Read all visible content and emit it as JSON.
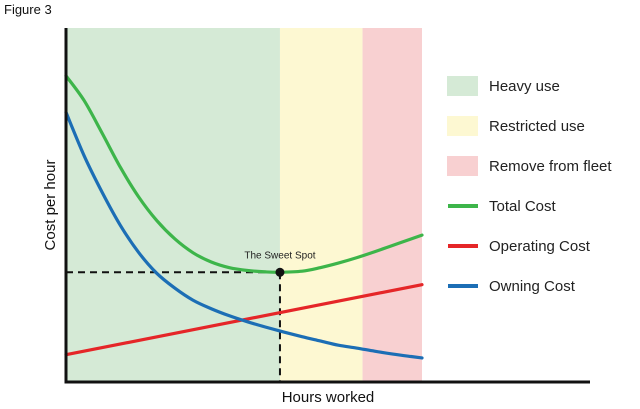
{
  "figure_label": "Figure 3",
  "chart_data": {
    "type": "line",
    "title": "",
    "xlabel": "Hours worked",
    "ylabel": "Cost per hour",
    "axis_ticks": false,
    "grid": false,
    "legend_position": "right",
    "x_range": [
      0,
      100
    ],
    "y_range": [
      0,
      100
    ],
    "zones": [
      {
        "name": "Heavy use",
        "color": "#d5ead6",
        "from": 0,
        "to": 60.1
      },
      {
        "name": "Restricted use",
        "color": "#fdf8d2",
        "from": 60.1,
        "to": 83.3
      },
      {
        "name": "Remove from fleet",
        "color": "#f8d0d1",
        "from": 83.3,
        "to": 100
      }
    ],
    "series": [
      {
        "name": "Total Cost",
        "color": "#3db54a",
        "x": [
          0,
          5.1,
          10.2,
          15.3,
          20.4,
          25.5,
          30.6,
          35.7,
          40.8,
          45.9,
          51.0,
          56.1,
          60.1,
          66.3,
          71.4,
          76.5,
          81.6,
          86.7,
          91.8,
          96.9,
          100
        ],
        "y": [
          86.5,
          79.5,
          70.2,
          60.6,
          52.3,
          45.6,
          40.4,
          36.5,
          33.9,
          32.3,
          31.5,
          31.1,
          31.0,
          31.3,
          32.3,
          33.6,
          35.1,
          36.8,
          38.6,
          40.4,
          41.5
        ]
      },
      {
        "name": "Operating Cost",
        "color": "#e52628",
        "x": [
          0,
          100
        ],
        "y": [
          7.7,
          27.5
        ]
      },
      {
        "name": "Owning Cost",
        "color": "#1c6eb5",
        "x": [
          0,
          5.1,
          10.2,
          15.3,
          20.4,
          25.5,
          30.6,
          35.7,
          40.8,
          45.9,
          51.0,
          56.1,
          61.2,
          66.3,
          71.4,
          76.5,
          81.6,
          86.7,
          91.8,
          96.9,
          100
        ],
        "y": [
          76.2,
          63.9,
          53.5,
          44.2,
          36.6,
          30.7,
          26.5,
          23.1,
          20.7,
          18.7,
          17.0,
          15.5,
          14.1,
          12.8,
          11.6,
          10.4,
          9.6,
          8.7,
          7.9,
          7.2,
          6.8
        ]
      }
    ],
    "annotations": [
      {
        "text": "The Sweet Spot",
        "x": 60.1,
        "y": 31.0
      }
    ]
  }
}
